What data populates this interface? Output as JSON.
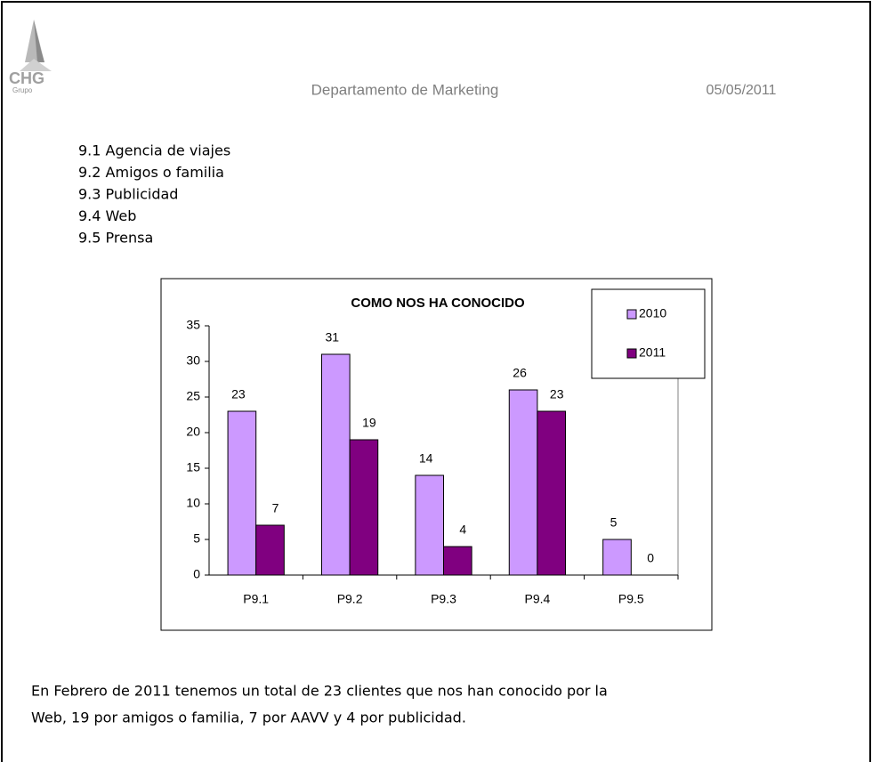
{
  "header": {
    "logo": {
      "text": "CHG",
      "subtext": "Grupo"
    },
    "title": "Departamento de Marketing",
    "date": "05/05/2011"
  },
  "list": [
    "9.1 Agencia de viajes",
    "9.2 Amigos o familia",
    "9.3 Publicidad",
    "9.4 Web",
    "9.5 Prensa"
  ],
  "chart_data": {
    "type": "bar",
    "title": "COMO NOS HA CONOCIDO",
    "categories": [
      "P9.1",
      "P9.2",
      "P9.3",
      "P9.4",
      "P9.5"
    ],
    "series": [
      {
        "name": "2010",
        "color": "#cc99ff",
        "values": [
          23,
          31,
          14,
          26,
          5
        ]
      },
      {
        "name": "2011",
        "color": "#800080",
        "values": [
          7,
          19,
          4,
          23,
          0
        ]
      }
    ],
    "ylim": [
      0,
      35
    ],
    "yticks": [
      0,
      5,
      10,
      15,
      20,
      25,
      30,
      35
    ],
    "legend": "top-right",
    "grid": false
  },
  "paragraph": [
    "En Febrero de 2011 tenemos un total de 23 clientes que nos han conocido por la",
    "Web, 19 por amigos o familia, 7 por AAVV y 4 por publicidad."
  ]
}
